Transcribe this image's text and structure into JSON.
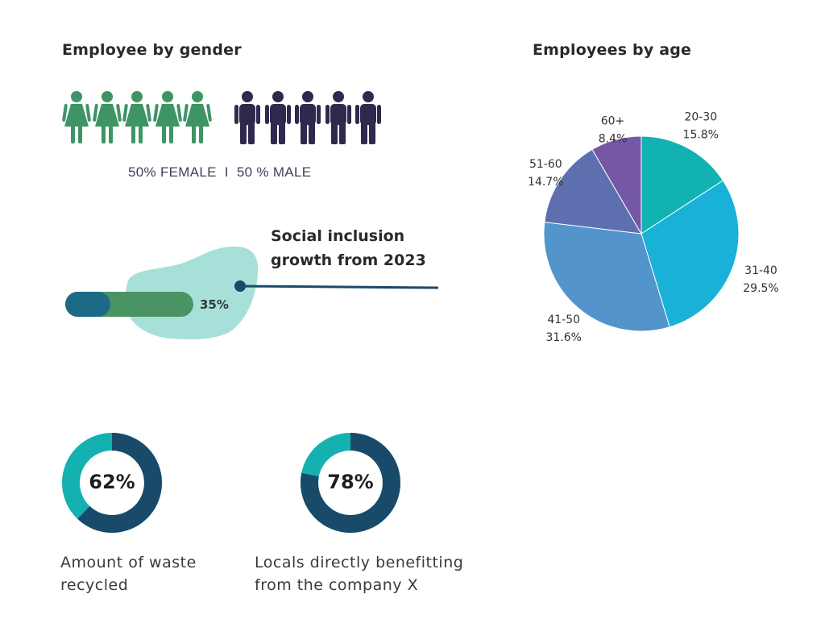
{
  "gender": {
    "title": "Employee by gender",
    "caption": "50% FEMALE  I  50 % MALE",
    "female_count": 5,
    "male_count": 5,
    "female_color": "#3e9465",
    "male_color": "#2e2a4e",
    "female_percent": 50,
    "male_percent": 50
  },
  "inclusion": {
    "title": "Social inclusion growth from 2023",
    "value_label": "35%",
    "value": 35,
    "blob_color": "#a7e0d8",
    "bar_color": "#4a9463",
    "bar_start_color": "#1c6a85",
    "line_color": "#1a4a6a"
  },
  "age": {
    "title": "Employees  by  age"
  },
  "chart_data": [
    {
      "type": "pie",
      "title": "Employees  by  age",
      "categories": [
        "20-30",
        "31-40",
        "41-50",
        "51-60",
        "60+"
      ],
      "values": [
        15.8,
        29.5,
        31.6,
        14.7,
        8.4
      ],
      "value_labels": [
        "15.8%",
        "29.5%",
        "31.6%",
        "14.7%",
        "8.4%"
      ],
      "colors": [
        "#12b2b3",
        "#1ab1d8",
        "#5294cb",
        "#5e6fb0",
        "#7458a6"
      ]
    },
    {
      "type": "donut",
      "value": 62,
      "value_label": "62%",
      "caption": "Amount of waste recycled",
      "fill_color": "#1a4a6a",
      "rest_color": "#14b1b0"
    },
    {
      "type": "donut",
      "value": 78,
      "value_label": "78%",
      "caption": "Locals directly benefitting from the company X",
      "fill_color": "#1a4a6a",
      "rest_color": "#14b1b0"
    }
  ]
}
